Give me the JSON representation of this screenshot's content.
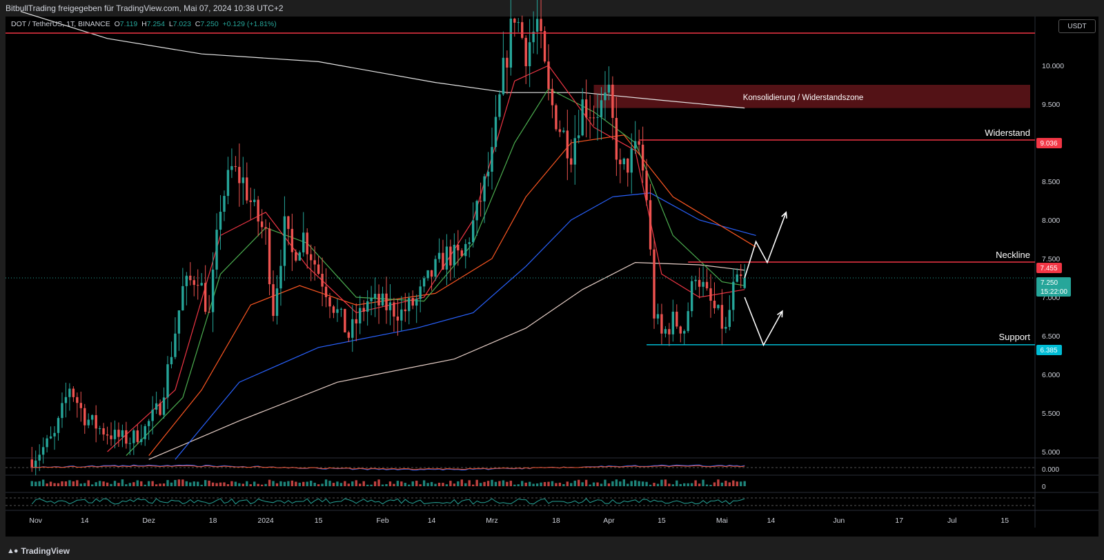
{
  "header": {
    "share_text": "BitbullTrading freigegeben für TradingView.com, Mai 07, 2024 10:38 UTC+2"
  },
  "symbol": {
    "name": "DOT / TetherUS, 1T, BINANCE",
    "o_label": "O",
    "o": "7.119",
    "h_label": "H",
    "h": "7.254",
    "l_label": "L",
    "l": "7.023",
    "c_label": "C",
    "c": "7.250",
    "change": "+0.129 (+1.81%)"
  },
  "currency_button": "USDT",
  "annotations": {
    "zone_label": "Konsolidierung / Widerstandszone",
    "resistance_label": "Widerstand",
    "neckline_label": "Neckline",
    "support_label": "Support"
  },
  "price_tags": {
    "resistance": "9.036",
    "neckline": "7.455",
    "current": "7.250",
    "countdown": "15:22:00",
    "support": "6.385"
  },
  "indicator_axis": {
    "macd_zero": "0.000",
    "osc_zero": "0"
  },
  "footer": {
    "brand": "TradingView"
  },
  "colors": {
    "background": "#000000",
    "up": "#26a69a",
    "down": "#ef5350",
    "resistance_line": "#f23645",
    "support_line": "#00bcd4",
    "zone_fill": "#5c1418",
    "ema_blue": "#2962ff",
    "ema_orange": "#ff5722",
    "ema_red": "#f23645",
    "ema_green": "#4caf50",
    "ma_light": "#e8d0c8"
  },
  "chart_data": {
    "type": "candlestick",
    "title": "DOT / TetherUS, 1T, BINANCE",
    "ylim": [
      4.9,
      10.6
    ],
    "y_ticks": [
      "10.000",
      "9.500",
      "9.000",
      "8.500",
      "8.000",
      "7.500",
      "7.000",
      "6.500",
      "6.000",
      "5.500",
      "5.000"
    ],
    "x_ticks": [
      {
        "label": "Nov",
        "date": "2023-11-01"
      },
      {
        "label": "14",
        "date": "2023-11-14"
      },
      {
        "label": "Dez",
        "date": "2023-12-01"
      },
      {
        "label": "18",
        "date": "2023-12-18"
      },
      {
        "label": "2024",
        "date": "2024-01-01"
      },
      {
        "label": "15",
        "date": "2024-01-15"
      },
      {
        "label": "Feb",
        "date": "2024-02-01"
      },
      {
        "label": "14",
        "date": "2024-02-14"
      },
      {
        "label": "Mrz",
        "date": "2024-03-01"
      },
      {
        "label": "18",
        "date": "2024-03-18"
      },
      {
        "label": "Apr",
        "date": "2024-04-01"
      },
      {
        "label": "15",
        "date": "2024-04-15"
      },
      {
        "label": "Mai",
        "date": "2024-05-01"
      },
      {
        "label": "14",
        "date": "2024-05-14"
      },
      {
        "label": "Jun",
        "date": "2024-06-01"
      },
      {
        "label": "17",
        "date": "2024-06-17"
      },
      {
        "label": "Jul",
        "date": "2024-07-01"
      },
      {
        "label": "15",
        "date": "2024-07-15"
      }
    ],
    "x_range": [
      "2023-10-24",
      "2024-07-23"
    ],
    "levels": {
      "top_line": 10.42,
      "resistance": 9.036,
      "neckline": 7.455,
      "current": 7.25,
      "support": 6.385,
      "zone": [
        9.45,
        9.75
      ]
    },
    "path_up": [
      [
        "2024-05-07",
        7.25
      ],
      [
        "2024-05-10",
        7.72
      ],
      [
        "2024-05-13",
        7.45
      ],
      [
        "2024-05-18",
        8.1
      ]
    ],
    "path_down": [
      [
        "2024-05-07",
        7.0
      ],
      [
        "2024-05-12",
        6.38
      ],
      [
        "2024-05-17",
        6.82
      ]
    ],
    "price_path": [
      [
        "2023-10-31",
        4.9
      ],
      [
        "2023-11-06",
        5.2
      ],
      [
        "2023-11-10",
        5.85
      ],
      [
        "2023-11-14",
        5.45
      ],
      [
        "2023-11-18",
        5.3
      ],
      [
        "2023-11-22",
        5.2
      ],
      [
        "2023-11-26",
        5.15
      ],
      [
        "2023-11-30",
        5.3
      ],
      [
        "2023-12-04",
        5.6
      ],
      [
        "2023-12-07",
        6.3
      ],
      [
        "2023-12-10",
        7.1
      ],
      [
        "2023-12-14",
        7.3
      ],
      [
        "2023-12-17",
        6.75
      ],
      [
        "2023-12-20",
        8.2
      ],
      [
        "2023-12-23",
        8.65
      ],
      [
        "2023-12-26",
        8.5
      ],
      [
        "2023-12-29",
        8.1
      ],
      [
        "2024-01-01",
        7.8
      ],
      [
        "2024-01-03",
        6.85
      ],
      [
        "2024-01-06",
        7.9
      ],
      [
        "2024-01-08",
        7.55
      ],
      [
        "2024-01-11",
        7.8
      ],
      [
        "2024-01-14",
        7.45
      ],
      [
        "2024-01-18",
        7.0
      ],
      [
        "2024-01-23",
        6.5
      ],
      [
        "2024-01-28",
        6.95
      ],
      [
        "2024-02-01",
        6.9
      ],
      [
        "2024-02-06",
        6.8
      ],
      [
        "2024-02-10",
        6.95
      ],
      [
        "2024-02-14",
        7.3
      ],
      [
        "2024-02-18",
        7.55
      ],
      [
        "2024-02-22",
        7.5
      ],
      [
        "2024-02-26",
        8.1
      ],
      [
        "2024-03-01",
        8.8
      ],
      [
        "2024-03-04",
        9.9
      ],
      [
        "2024-03-07",
        10.7
      ],
      [
        "2024-03-10",
        10.2
      ],
      [
        "2024-03-13",
        10.55
      ],
      [
        "2024-03-16",
        9.6
      ],
      [
        "2024-03-19",
        9.2
      ],
      [
        "2024-03-22",
        8.9
      ],
      [
        "2024-03-25",
        9.5
      ],
      [
        "2024-03-28",
        9.4
      ],
      [
        "2024-04-01",
        9.55
      ],
      [
        "2024-04-04",
        8.6
      ],
      [
        "2024-04-07",
        8.8
      ],
      [
        "2024-04-09",
        8.95
      ],
      [
        "2024-04-11",
        8.3
      ],
      [
        "2024-04-13",
        6.8
      ],
      [
        "2024-04-15",
        6.5
      ],
      [
        "2024-04-18",
        6.7
      ],
      [
        "2024-04-21",
        6.6
      ],
      [
        "2024-04-24",
        7.35
      ],
      [
        "2024-04-27",
        7.0
      ],
      [
        "2024-04-30",
        6.75
      ],
      [
        "2024-05-02",
        6.55
      ],
      [
        "2024-05-04",
        7.1
      ],
      [
        "2024-05-06",
        7.2
      ],
      [
        "2024-05-07",
        7.25
      ]
    ],
    "ma_paths": [
      {
        "name": "",
        "color": "#e8e8e8",
        "points": [
          [
            "2023-10-28",
            10.7
          ],
          [
            "2023-11-20",
            10.35
          ],
          [
            "2023-12-15",
            10.15
          ],
          [
            "2024-01-15",
            10.05
          ],
          [
            "2024-02-15",
            9.78
          ],
          [
            "2024-03-05",
            9.65
          ],
          [
            "2024-03-25",
            9.65
          ],
          [
            "2024-04-15",
            9.55
          ],
          [
            "2024-05-07",
            9.45
          ]
        ]
      },
      {
        "name": "",
        "color": "#e8d0c8",
        "points": [
          [
            "2023-12-01",
            4.9
          ],
          [
            "2023-12-25",
            5.4
          ],
          [
            "2024-01-20",
            5.9
          ],
          [
            "2024-02-20",
            6.2
          ],
          [
            "2024-03-10",
            6.6
          ],
          [
            "2024-03-25",
            7.1
          ],
          [
            "2024-04-08",
            7.45
          ],
          [
            "2024-04-25",
            7.42
          ],
          [
            "2024-05-07",
            7.35
          ]
        ]
      },
      {
        "name": "",
        "color": "#2962ff",
        "points": [
          [
            "2023-12-08",
            4.9
          ],
          [
            "2023-12-25",
            5.9
          ],
          [
            "2024-01-15",
            6.35
          ],
          [
            "2024-02-10",
            6.6
          ],
          [
            "2024-02-25",
            6.8
          ],
          [
            "2024-03-10",
            7.4
          ],
          [
            "2024-03-22",
            8.0
          ],
          [
            "2024-04-02",
            8.3
          ],
          [
            "2024-04-12",
            8.35
          ],
          [
            "2024-04-25",
            8.0
          ],
          [
            "2024-05-10",
            7.8
          ]
        ]
      },
      {
        "name": "",
        "color": "#ff5722",
        "points": [
          [
            "2023-12-01",
            4.95
          ],
          [
            "2023-12-15",
            5.8
          ],
          [
            "2023-12-28",
            6.9
          ],
          [
            "2024-01-10",
            7.15
          ],
          [
            "2024-01-25",
            6.9
          ],
          [
            "2024-02-15",
            7.05
          ],
          [
            "2024-03-01",
            7.5
          ],
          [
            "2024-03-10",
            8.3
          ],
          [
            "2024-03-22",
            9.0
          ],
          [
            "2024-04-05",
            9.1
          ],
          [
            "2024-04-18",
            8.3
          ],
          [
            "2024-05-10",
            7.65
          ]
        ]
      },
      {
        "name": "",
        "color": "#4caf50",
        "points": [
          [
            "2023-11-25",
            4.95
          ],
          [
            "2023-12-10",
            5.7
          ],
          [
            "2023-12-20",
            7.3
          ],
          [
            "2024-01-01",
            7.9
          ],
          [
            "2024-01-12",
            7.7
          ],
          [
            "2024-01-25",
            7.0
          ],
          [
            "2024-02-12",
            6.95
          ],
          [
            "2024-02-25",
            7.7
          ],
          [
            "2024-03-07",
            9.0
          ],
          [
            "2024-03-16",
            9.7
          ],
          [
            "2024-03-28",
            9.4
          ],
          [
            "2024-04-08",
            9.0
          ],
          [
            "2024-04-18",
            7.8
          ],
          [
            "2024-05-01",
            7.2
          ],
          [
            "2024-05-07",
            7.15
          ]
        ]
      },
      {
        "name": "",
        "color": "#f23645",
        "points": [
          [
            "2023-11-20",
            5.0
          ],
          [
            "2023-12-08",
            5.8
          ],
          [
            "2023-12-20",
            7.8
          ],
          [
            "2024-01-01",
            8.1
          ],
          [
            "2024-01-12",
            7.4
          ],
          [
            "2024-01-25",
            6.8
          ],
          [
            "2024-02-12",
            7.0
          ],
          [
            "2024-02-25",
            8.0
          ],
          [
            "2024-03-07",
            9.8
          ],
          [
            "2024-03-16",
            10.0
          ],
          [
            "2024-03-28",
            9.2
          ],
          [
            "2024-04-08",
            8.9
          ],
          [
            "2024-04-15",
            7.3
          ],
          [
            "2024-04-25",
            7.0
          ],
          [
            "2024-05-07",
            7.1
          ]
        ]
      }
    ]
  }
}
